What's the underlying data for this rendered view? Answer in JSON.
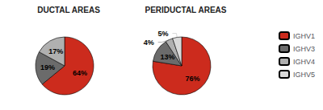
{
  "chart_data": [
    {
      "type": "pie",
      "title": "DUCTAL AREAS",
      "categories": [
        "IGHV1",
        "IGHV3",
        "IGHV4"
      ],
      "values": [
        64,
        19,
        17
      ],
      "value_labels": [
        "64%",
        "19%",
        "17%"
      ],
      "colors": [
        "#cc2b1d",
        "#6b6b6b",
        "#b0b0b0"
      ],
      "data_labels": true,
      "legend": "right"
    },
    {
      "type": "pie",
      "title": "PERIDUCTAL AREAS",
      "categories": [
        "IGHV1",
        "IGHV3",
        "IGHV4",
        "IGHV5"
      ],
      "values": [
        76,
        13,
        4,
        5
      ],
      "value_labels": [
        "76%",
        "13%",
        "4%",
        "5%"
      ],
      "colors": [
        "#cc2b1d",
        "#6b6b6b",
        "#b0b0b0",
        "#d9d9d9"
      ],
      "data_labels": true,
      "legend": "right"
    }
  ]
}
